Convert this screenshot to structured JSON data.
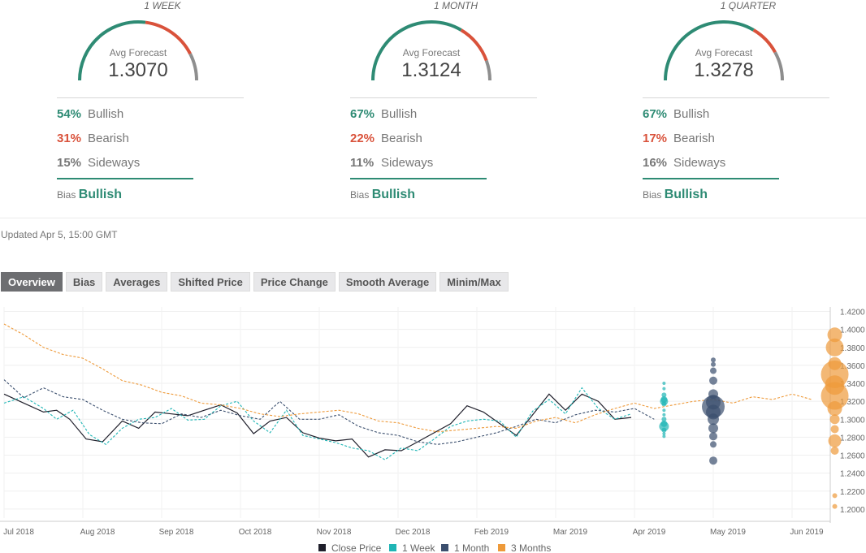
{
  "panels": [
    {
      "period": "1 WEEK",
      "avg_label": "Avg Forecast",
      "avg_value": "1.3070",
      "bullish": {
        "pct": "54%",
        "label": "Bullish",
        "frac": 0.54
      },
      "bearish": {
        "pct": "31%",
        "label": "Bearish",
        "frac": 0.31
      },
      "sideways": {
        "pct": "15%",
        "label": "Sideways",
        "frac": 0.15
      },
      "bias_label": "Bias",
      "bias_value": "Bullish"
    },
    {
      "period": "1 MONTH",
      "avg_label": "Avg Forecast",
      "avg_value": "1.3124",
      "bullish": {
        "pct": "67%",
        "label": "Bullish",
        "frac": 0.67
      },
      "bearish": {
        "pct": "22%",
        "label": "Bearish",
        "frac": 0.22
      },
      "sideways": {
        "pct": "11%",
        "label": "Sideways",
        "frac": 0.11
      },
      "bias_label": "Bias",
      "bias_value": "Bullish"
    },
    {
      "period": "1 QUARTER",
      "avg_label": "Avg Forecast",
      "avg_value": "1.3278",
      "bullish": {
        "pct": "67%",
        "label": "Bullish",
        "frac": 0.67
      },
      "bearish": {
        "pct": "17%",
        "label": "Bearish",
        "frac": 0.17
      },
      "sideways": {
        "pct": "16%",
        "label": "Sideways",
        "frac": 0.16
      },
      "bias_label": "Bias",
      "bias_value": "Bullish"
    }
  ],
  "colors": {
    "bullish": "#2e8b74",
    "bearish": "#d9523b",
    "sideways": "#8e8e8e",
    "close": "#1f1f2b",
    "week": "#1fb5b5",
    "month": "#3b4f6e",
    "quarter": "#ee9a3a"
  },
  "updated": "Updated Apr 5, 15:00 GMT",
  "tabs": [
    "Overview",
    "Bias",
    "Averages",
    "Shifted Price",
    "Price Change",
    "Smooth Average",
    "Minim/Max"
  ],
  "active_tab": "Overview",
  "chart_data": {
    "type": "line",
    "x_tick_labels": [
      "Jul 2018",
      "Aug 2018",
      "Sep 2018",
      "Oct 2018",
      "Nov 2018",
      "Dec 2018",
      "Feb 2019",
      "Mar 2019",
      "Apr 2019",
      "May 2019",
      "Jun 2019"
    ],
    "y_ticks": [
      "1.4200",
      "1.4000",
      "1.3800",
      "1.3600",
      "1.3400",
      "1.3200",
      "1.3000",
      "1.2800",
      "1.2600",
      "1.2400",
      "1.2200",
      "1.2000"
    ],
    "ylim": [
      1.19,
      1.425
    ],
    "legend": [
      "Close Price",
      "1 Week",
      "1 Month",
      "3 Months"
    ],
    "series": [
      {
        "name": "Close Price",
        "style": "solid",
        "points": [
          [
            0,
            1.328
          ],
          [
            6,
            1.318
          ],
          [
            12,
            1.308
          ],
          [
            16,
            1.31
          ],
          [
            20,
            1.3
          ],
          [
            25,
            1.278
          ],
          [
            30,
            1.275
          ],
          [
            36,
            1.298
          ],
          [
            41,
            1.29
          ],
          [
            46,
            1.308
          ],
          [
            51,
            1.306
          ],
          [
            56,
            1.304
          ],
          [
            61,
            1.31
          ],
          [
            66,
            1.316
          ],
          [
            71,
            1.307
          ],
          [
            76,
            1.284
          ],
          [
            81,
            1.298
          ],
          [
            86,
            1.302
          ],
          [
            91,
            1.285
          ],
          [
            96,
            1.279
          ],
          [
            101,
            1.276
          ],
          [
            106,
            1.278
          ],
          [
            111,
            1.258
          ],
          [
            116,
            1.266
          ],
          [
            121,
            1.265
          ],
          [
            126,
            1.275
          ],
          [
            131,
            1.285
          ],
          [
            136,
            1.295
          ],
          [
            141,
            1.315
          ],
          [
            146,
            1.308
          ],
          [
            151,
            1.295
          ],
          [
            156,
            1.282
          ],
          [
            161,
            1.305
          ],
          [
            166,
            1.328
          ],
          [
            171,
            1.31
          ],
          [
            176,
            1.328
          ],
          [
            181,
            1.32
          ],
          [
            186,
            1.3
          ],
          [
            191,
            1.302
          ]
        ]
      },
      {
        "name": "1 Week",
        "style": "dashed",
        "points": [
          [
            0,
            1.318
          ],
          [
            6,
            1.325
          ],
          [
            12,
            1.312
          ],
          [
            16,
            1.3
          ],
          [
            21,
            1.31
          ],
          [
            26,
            1.283
          ],
          [
            31,
            1.272
          ],
          [
            36,
            1.29
          ],
          [
            41,
            1.3
          ],
          [
            46,
            1.302
          ],
          [
            51,
            1.312
          ],
          [
            56,
            1.299
          ],
          [
            61,
            1.3
          ],
          [
            66,
            1.315
          ],
          [
            71,
            1.32
          ],
          [
            76,
            1.298
          ],
          [
            81,
            1.285
          ],
          [
            86,
            1.31
          ],
          [
            91,
            1.282
          ],
          [
            96,
            1.278
          ],
          [
            101,
            1.274
          ],
          [
            106,
            1.268
          ],
          [
            111,
            1.265
          ],
          [
            116,
            1.255
          ],
          [
            121,
            1.268
          ],
          [
            126,
            1.265
          ],
          [
            131,
            1.278
          ],
          [
            136,
            1.292
          ],
          [
            141,
            1.298
          ],
          [
            146,
            1.3
          ],
          [
            151,
            1.298
          ],
          [
            156,
            1.28
          ],
          [
            161,
            1.309
          ],
          [
            166,
            1.322
          ],
          [
            171,
            1.306
          ],
          [
            176,
            1.335
          ],
          [
            181,
            1.312
          ],
          [
            186,
            1.3
          ],
          [
            191,
            1.306
          ]
        ]
      },
      {
        "name": "1 Month",
        "style": "dashed",
        "points": [
          [
            0,
            1.344
          ],
          [
            6,
            1.324
          ],
          [
            12,
            1.335
          ],
          [
            18,
            1.325
          ],
          [
            24,
            1.322
          ],
          [
            30,
            1.31
          ],
          [
            36,
            1.3
          ],
          [
            42,
            1.296
          ],
          [
            48,
            1.295
          ],
          [
            54,
            1.306
          ],
          [
            60,
            1.302
          ],
          [
            66,
            1.31
          ],
          [
            72,
            1.304
          ],
          [
            78,
            1.3
          ],
          [
            84,
            1.32
          ],
          [
            90,
            1.3
          ],
          [
            96,
            1.3
          ],
          [
            102,
            1.305
          ],
          [
            108,
            1.292
          ],
          [
            114,
            1.285
          ],
          [
            120,
            1.282
          ],
          [
            126,
            1.275
          ],
          [
            132,
            1.272
          ],
          [
            138,
            1.275
          ],
          [
            144,
            1.28
          ],
          [
            150,
            1.285
          ],
          [
            156,
            1.292
          ],
          [
            162,
            1.3
          ],
          [
            168,
            1.296
          ],
          [
            174,
            1.305
          ],
          [
            180,
            1.31
          ],
          [
            186,
            1.308
          ],
          [
            192,
            1.312
          ],
          [
            198,
            1.3
          ]
        ]
      },
      {
        "name": "3 Months",
        "style": "dashed",
        "points": [
          [
            0,
            1.406
          ],
          [
            6,
            1.394
          ],
          [
            12,
            1.38
          ],
          [
            18,
            1.372
          ],
          [
            24,
            1.368
          ],
          [
            30,
            1.356
          ],
          [
            36,
            1.343
          ],
          [
            42,
            1.338
          ],
          [
            48,
            1.33
          ],
          [
            54,
            1.326
          ],
          [
            60,
            1.318
          ],
          [
            66,
            1.316
          ],
          [
            72,
            1.312
          ],
          [
            78,
            1.306
          ],
          [
            84,
            1.303
          ],
          [
            90,
            1.306
          ],
          [
            96,
            1.308
          ],
          [
            102,
            1.31
          ],
          [
            108,
            1.306
          ],
          [
            114,
            1.298
          ],
          [
            120,
            1.296
          ],
          [
            126,
            1.29
          ],
          [
            132,
            1.286
          ],
          [
            138,
            1.288
          ],
          [
            144,
            1.29
          ],
          [
            150,
            1.292
          ],
          [
            156,
            1.29
          ],
          [
            162,
            1.298
          ],
          [
            168,
            1.302
          ],
          [
            174,
            1.296
          ],
          [
            180,
            1.305
          ],
          [
            186,
            1.312
          ],
          [
            192,
            1.318
          ],
          [
            198,
            1.312
          ],
          [
            204,
            1.316
          ],
          [
            210,
            1.32
          ],
          [
            216,
            1.322
          ],
          [
            222,
            1.318
          ],
          [
            228,
            1.325
          ],
          [
            234,
            1.322
          ],
          [
            240,
            1.328
          ],
          [
            246,
            1.322
          ]
        ]
      }
    ],
    "bubbles": [
      {
        "name": "1 Week",
        "x": 201,
        "values": [
          1.34,
          1.334,
          1.327,
          1.322,
          1.32,
          1.317,
          1.31,
          1.305,
          1.3,
          1.295,
          1.292,
          1.288,
          1.284,
          1.281
        ],
        "sizes": [
          2,
          2,
          3,
          4,
          5,
          3,
          2,
          2,
          3,
          4,
          6,
          3,
          2,
          2
        ]
      },
      {
        "name": "1 Month",
        "x": 216,
        "values": [
          1.366,
          1.361,
          1.354,
          1.343,
          1.328,
          1.319,
          1.314,
          1.308,
          1.3,
          1.29,
          1.281,
          1.272,
          1.254
        ],
        "sizes": [
          3,
          3,
          4,
          5,
          6,
          9,
          14,
          9,
          7,
          6,
          5,
          4,
          5
        ]
      },
      {
        "name": "3 Months",
        "x": 253,
        "values": [
          1.394,
          1.38,
          1.362,
          1.35,
          1.338,
          1.326,
          1.312,
          1.3,
          1.289,
          1.276,
          1.265,
          1.215,
          1.203
        ],
        "sizes": [
          9,
          11,
          8,
          17,
          12,
          17,
          9,
          6,
          5,
          8,
          5,
          3,
          3
        ]
      }
    ]
  }
}
